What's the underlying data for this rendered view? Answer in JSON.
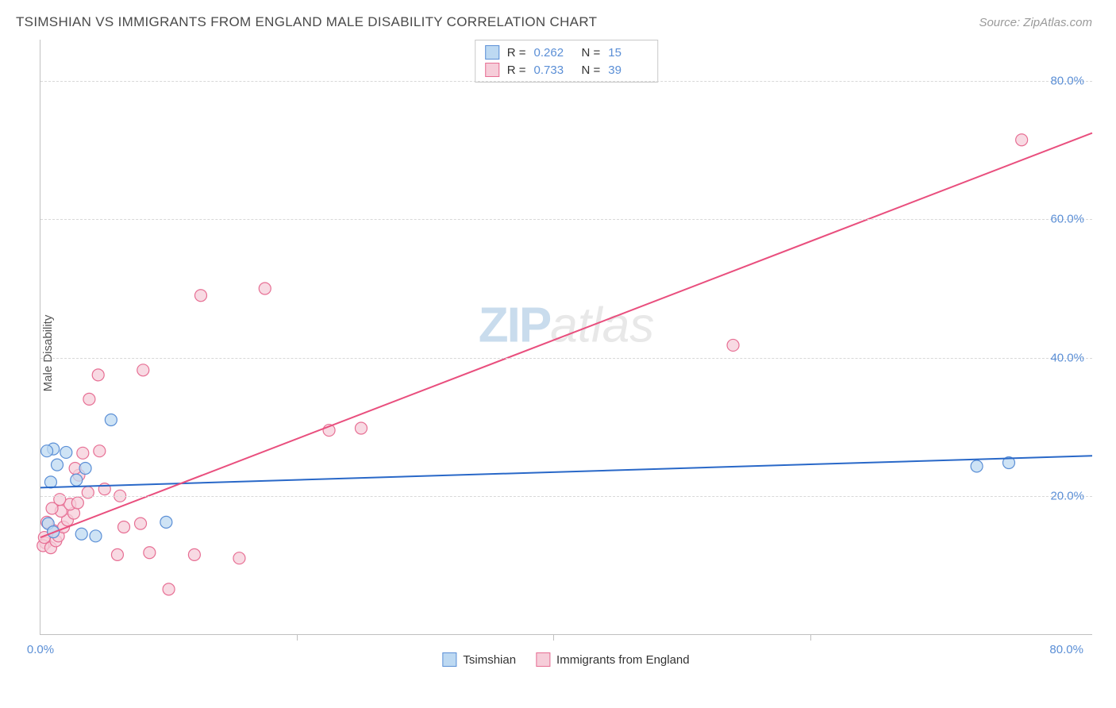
{
  "header": {
    "title": "TSIMSHIAN VS IMMIGRANTS FROM ENGLAND MALE DISABILITY CORRELATION CHART",
    "source": "Source: ZipAtlas.com"
  },
  "ylabel": "Male Disability",
  "watermark": {
    "part1": "ZIP",
    "part2": "atlas"
  },
  "series": [
    {
      "name": "Tsimshian",
      "color_fill": "#bdd9f2",
      "color_stroke": "#5b8fd6",
      "line_color": "#2968c8",
      "R": "0.262",
      "N": "15",
      "trend": {
        "x1": 0,
        "y1": 21.2,
        "x2": 82,
        "y2": 25.8
      },
      "points": [
        {
          "x": 1.0,
          "y": 26.8
        },
        {
          "x": 0.5,
          "y": 26.5
        },
        {
          "x": 2.0,
          "y": 26.3
        },
        {
          "x": 1.3,
          "y": 24.5
        },
        {
          "x": 0.8,
          "y": 22.0
        },
        {
          "x": 2.8,
          "y": 22.3
        },
        {
          "x": 0.6,
          "y": 16.0
        },
        {
          "x": 1.0,
          "y": 14.8
        },
        {
          "x": 3.2,
          "y": 14.5
        },
        {
          "x": 4.3,
          "y": 14.2
        },
        {
          "x": 5.5,
          "y": 31.0
        },
        {
          "x": 9.8,
          "y": 16.2
        },
        {
          "x": 73.0,
          "y": 24.3
        },
        {
          "x": 75.5,
          "y": 24.8
        },
        {
          "x": 3.5,
          "y": 24.0
        }
      ]
    },
    {
      "name": "Immigrants from England",
      "color_fill": "#f6cdd9",
      "color_stroke": "#e76f94",
      "line_color": "#e94f7e",
      "R": "0.733",
      "N": "39",
      "trend": {
        "x1": 0,
        "y1": 14.0,
        "x2": 82,
        "y2": 72.5
      },
      "points": [
        {
          "x": 0.4,
          "y": 13.2
        },
        {
          "x": 0.2,
          "y": 12.8
        },
        {
          "x": 0.8,
          "y": 12.5
        },
        {
          "x": 0.3,
          "y": 14.0
        },
        {
          "x": 1.2,
          "y": 13.5
        },
        {
          "x": 1.0,
          "y": 15.0
        },
        {
          "x": 1.4,
          "y": 14.2
        },
        {
          "x": 1.8,
          "y": 15.5
        },
        {
          "x": 0.5,
          "y": 16.2
        },
        {
          "x": 2.1,
          "y": 16.5
        },
        {
          "x": 1.6,
          "y": 17.8
        },
        {
          "x": 2.6,
          "y": 17.5
        },
        {
          "x": 0.9,
          "y": 18.2
        },
        {
          "x": 2.3,
          "y": 18.8
        },
        {
          "x": 2.9,
          "y": 19.0
        },
        {
          "x": 1.5,
          "y": 19.5
        },
        {
          "x": 3.0,
          "y": 23.0
        },
        {
          "x": 3.7,
          "y": 20.5
        },
        {
          "x": 2.7,
          "y": 24.0
        },
        {
          "x": 3.3,
          "y": 26.2
        },
        {
          "x": 4.6,
          "y": 26.5
        },
        {
          "x": 5.0,
          "y": 21.0
        },
        {
          "x": 6.2,
          "y": 20.0
        },
        {
          "x": 6.5,
          "y": 15.5
        },
        {
          "x": 6.0,
          "y": 11.5
        },
        {
          "x": 7.8,
          "y": 16.0
        },
        {
          "x": 8.5,
          "y": 11.8
        },
        {
          "x": 10.0,
          "y": 6.5
        },
        {
          "x": 12.0,
          "y": 11.5
        },
        {
          "x": 15.5,
          "y": 11.0
        },
        {
          "x": 3.8,
          "y": 34.0
        },
        {
          "x": 4.5,
          "y": 37.5
        },
        {
          "x": 8.0,
          "y": 38.2
        },
        {
          "x": 12.5,
          "y": 49.0
        },
        {
          "x": 17.5,
          "y": 50.0
        },
        {
          "x": 22.5,
          "y": 29.5
        },
        {
          "x": 25.0,
          "y": 29.8
        },
        {
          "x": 54.0,
          "y": 41.8
        },
        {
          "x": 76.5,
          "y": 71.5
        }
      ]
    }
  ],
  "axes": {
    "xlim": [
      0,
      82
    ],
    "ylim": [
      0,
      86
    ],
    "xticks": [
      {
        "v": 0,
        "label": "0.0%"
      },
      {
        "v": 80,
        "label": "80.0%"
      }
    ],
    "xticks_major_nolabel": [
      20,
      40,
      60
    ],
    "yticks": [
      {
        "v": 20,
        "label": "20.0%"
      },
      {
        "v": 40,
        "label": "40.0%"
      },
      {
        "v": 60,
        "label": "60.0%"
      },
      {
        "v": 80,
        "label": "80.0%"
      }
    ]
  },
  "style": {
    "point_radius": 7.5,
    "point_opacity": 0.75,
    "line_width": 2,
    "background": "#ffffff",
    "grid_color": "#d8d8d8",
    "axis_color": "#c0c0c0",
    "title_fontsize": 17,
    "label_fontsize": 15,
    "legend_fontsize": 15,
    "tick_label_color": "#5b8fd6"
  },
  "legend_top": {
    "r_label": "R =",
    "n_label": "N ="
  }
}
